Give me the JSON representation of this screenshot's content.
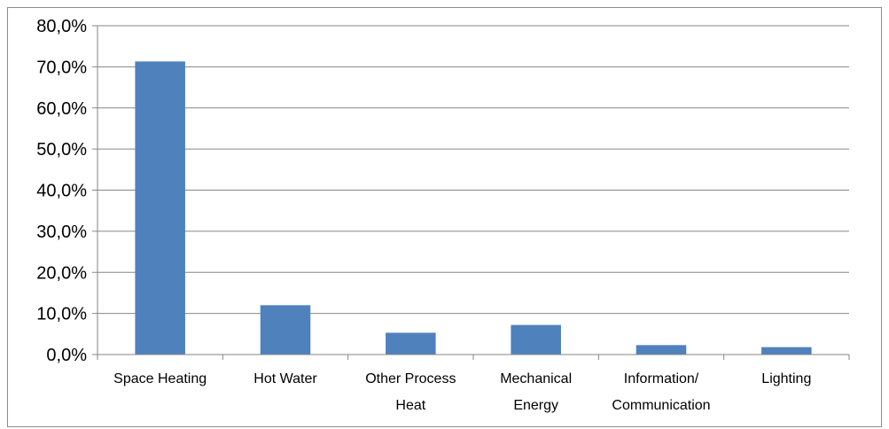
{
  "chart_data": {
    "type": "bar",
    "categories": [
      [
        "Space Heating"
      ],
      [
        "Hot Water"
      ],
      [
        "Other Process",
        "Heat"
      ],
      [
        "Mechanical",
        "Energy"
      ],
      [
        "Information/",
        "Communication"
      ],
      [
        "Lighting"
      ]
    ],
    "values": [
      71.3,
      12.0,
      5.3,
      7.2,
      2.3,
      1.8
    ],
    "ylim": [
      0,
      80
    ],
    "yticks": [
      0,
      10,
      20,
      30,
      40,
      50,
      60,
      70,
      80
    ],
    "ytick_labels": [
      "0,0%",
      "10,0%",
      "20,0%",
      "30,0%",
      "40,0%",
      "50,0%",
      "60,0%",
      "70,0%",
      "80,0%"
    ],
    "title": "",
    "xlabel": "",
    "ylabel": "",
    "grid": true,
    "legend": "none",
    "colors": {
      "bar": "#4f81bd",
      "grid": "#868686",
      "axis": "#868686",
      "frame": "#8c8c8c"
    }
  }
}
